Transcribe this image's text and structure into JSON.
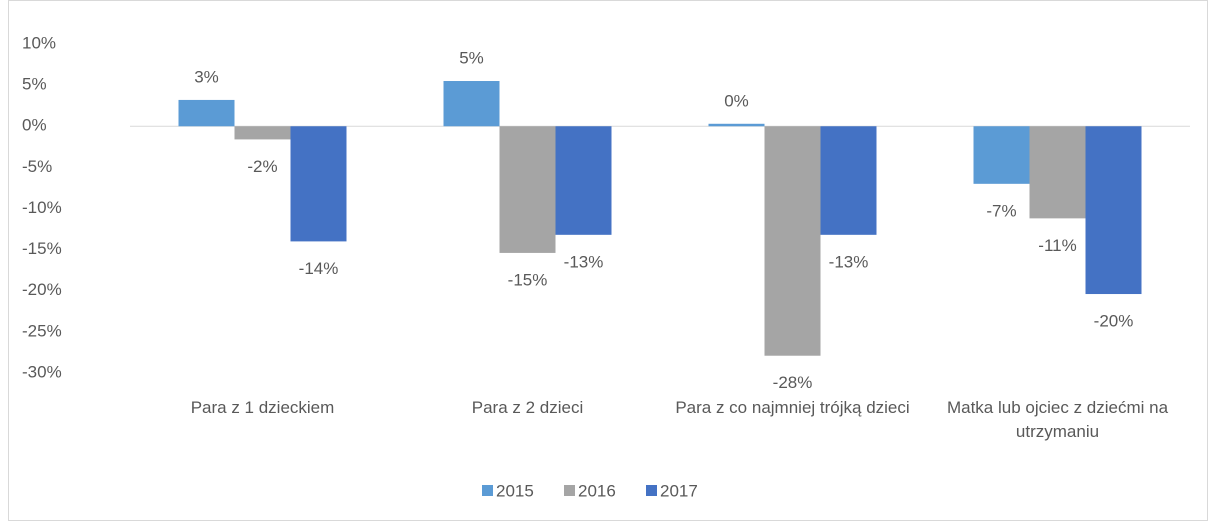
{
  "chart_data": {
    "type": "bar",
    "categories": [
      "Para z 1 dzieckiem",
      "Para z 2 dzieci",
      "Para z co najmniej trójką dzieci",
      "Matka lub ojciec z dziećmi na utrzymaniu"
    ],
    "series": [
      {
        "name": "2015",
        "color": "#5b9bd5",
        "values": [
          3.2,
          5.5,
          0.3,
          -7.0
        ],
        "value_labels": [
          "3%",
          "5%",
          "0%",
          "-7%"
        ]
      },
      {
        "name": "2016",
        "color": "#a5a5a5",
        "values": [
          -1.6,
          -15.4,
          -27.9,
          -11.2
        ],
        "value_labels": [
          "-2%",
          "-15%",
          "-28%",
          "-11%"
        ]
      },
      {
        "name": "2017",
        "color": "#4472c4",
        "values": [
          -14.0,
          -13.2,
          -13.2,
          -20.4
        ],
        "value_labels": [
          "-14%",
          "-13%",
          "-13%",
          "-20%"
        ]
      }
    ],
    "ylim": [
      -30,
      10
    ],
    "yticks": [
      {
        "value": 10,
        "label": "10%"
      },
      {
        "value": 5,
        "label": "5%"
      },
      {
        "value": 0,
        "label": "0%"
      },
      {
        "value": -5,
        "label": "-5%"
      },
      {
        "value": -10,
        "label": "-10%"
      },
      {
        "value": -15,
        "label": "-15%"
      },
      {
        "value": -20,
        "label": "-20%"
      },
      {
        "value": -25,
        "label": "-25%"
      },
      {
        "value": -30,
        "label": "-30%"
      }
    ],
    "grid": false,
    "legend": "bottom"
  }
}
